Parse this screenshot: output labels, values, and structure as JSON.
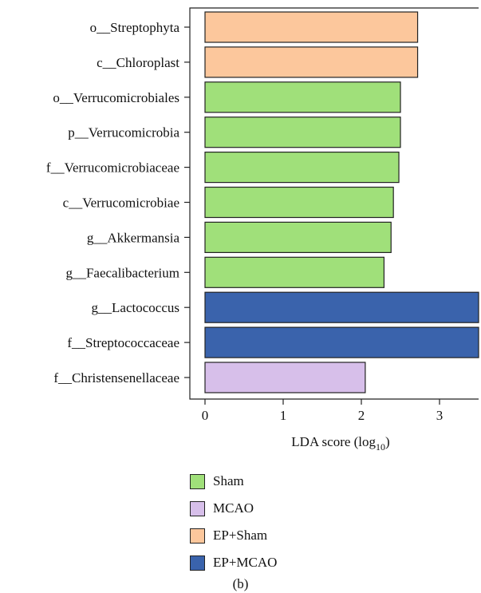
{
  "chart_data": {
    "type": "bar",
    "orientation": "horizontal",
    "categories": [
      "o__Streptophyta",
      "c__Chloroplast",
      "o__Verrucomicrobiales",
      "p__Verrucomicrobia",
      "f__Verrucomicrobiaceae",
      "c__Verrucomicrobiae",
      "g__Akkermansia",
      "g__Faecalibacterium",
      "g__Lactococcus",
      "f__Streptococcaceae",
      "f__Christensenellaceae"
    ],
    "values": [
      2.72,
      2.72,
      2.5,
      2.5,
      2.48,
      2.41,
      2.38,
      2.29,
      3.5,
      3.5,
      2.05
    ],
    "groups": [
      "EP+Sham",
      "EP+Sham",
      "Sham",
      "Sham",
      "Sham",
      "Sham",
      "Sham",
      "Sham",
      "EP+MCAO",
      "EP+MCAO",
      "MCAO"
    ],
    "xlabel": "LDA score (log",
    "xlabel_sub": "10",
    "xlabel_close": ")",
    "xticks": [
      0,
      1,
      2,
      3
    ],
    "xlim": [
      0,
      3.5
    ],
    "legend_position": "bottom",
    "legend": [
      {
        "name": "Sham",
        "color": "#a0e07a"
      },
      {
        "name": "MCAO",
        "color": "#d7bfea"
      },
      {
        "name": "EP+Sham",
        "color": "#fcc79c"
      },
      {
        "name": "EP+MCAO",
        "color": "#3a63ac"
      }
    ],
    "caption": "(b)"
  }
}
